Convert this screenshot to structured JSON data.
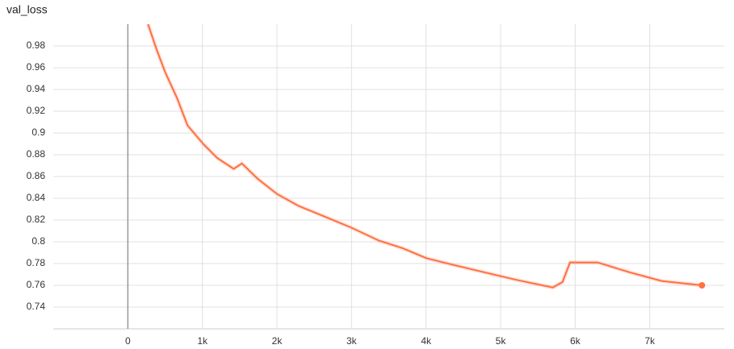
{
  "chart_data": {
    "type": "line",
    "title": "val_loss",
    "x": [
      270,
      390,
      500,
      660,
      800,
      1010,
      1200,
      1420,
      1530,
      1740,
      2000,
      2290,
      2610,
      3000,
      3370,
      3690,
      4000,
      4350,
      4780,
      5210,
      5700,
      5830,
      5930,
      6300,
      6730,
      7160,
      7700
    ],
    "series": [
      {
        "name": "val_loss",
        "color": "#ff7043",
        "values": [
          1.0,
          0.976,
          0.956,
          0.932,
          0.907,
          0.89,
          0.877,
          0.867,
          0.872,
          0.858,
          0.844,
          0.833,
          0.824,
          0.813,
          0.801,
          0.794,
          0.785,
          0.779,
          0.772,
          0.765,
          0.758,
          0.763,
          0.781,
          0.781,
          0.772,
          0.764,
          0.76
        ]
      }
    ],
    "xlim": [
      -1000,
      8000
    ],
    "ylim": [
      0.72,
      1.0
    ],
    "xticks": [
      0,
      {
        "value": 1000,
        "label": "1k"
      },
      {
        "value": 2000,
        "label": "2k"
      },
      {
        "value": 3000,
        "label": "3k"
      },
      {
        "value": 4000,
        "label": "4k"
      },
      {
        "value": 5000,
        "label": "5k"
      },
      {
        "value": 6000,
        "label": "6k"
      },
      {
        "value": 7000,
        "label": "7k"
      }
    ],
    "yticks": [
      0.74,
      0.76,
      0.78,
      0.8,
      0.82,
      0.84,
      0.86,
      0.88,
      0.9,
      0.92,
      0.94,
      0.96,
      0.98
    ],
    "grid": true
  }
}
